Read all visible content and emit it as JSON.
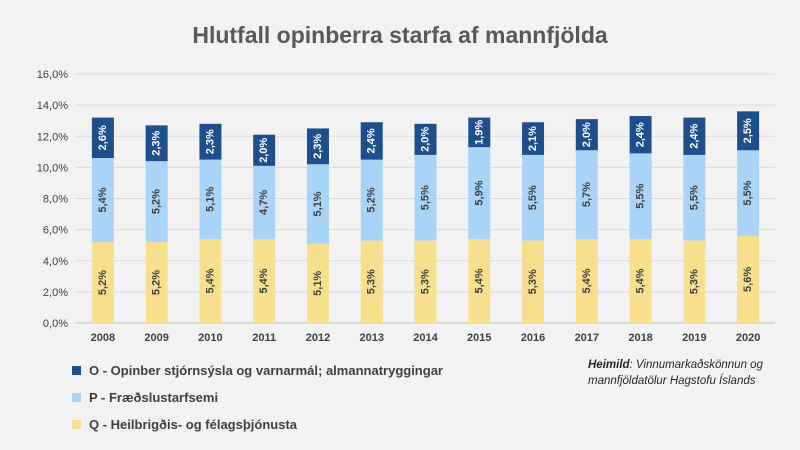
{
  "chart_data": {
    "type": "bar",
    "stacked": true,
    "title": "Hlutfall opinberra starfa af mannfjölda",
    "categories": [
      "2008",
      "2009",
      "2010",
      "2011",
      "2012",
      "2013",
      "2014",
      "2015",
      "2016",
      "2017",
      "2018",
      "2019",
      "2020"
    ],
    "series": [
      {
        "name": "Q - Heilbrigðis- og félagsþjónusta",
        "color": "#f7df8e",
        "label_color": "#404040",
        "values": [
          5.2,
          5.2,
          5.4,
          5.4,
          5.1,
          5.3,
          5.3,
          5.4,
          5.3,
          5.4,
          5.4,
          5.3,
          5.6
        ],
        "labels": [
          "5,2%",
          "5,2%",
          "5,4%",
          "5,4%",
          "5,1%",
          "5,3%",
          "5,3%",
          "5,4%",
          "5,3%",
          "5,4%",
          "5,4%",
          "5,3%",
          "5,6%"
        ]
      },
      {
        "name": "P - Fræðslustarfsemi",
        "color": "#a9d3f7",
        "label_color": "#404040",
        "values": [
          5.4,
          5.2,
          5.1,
          4.7,
          5.1,
          5.2,
          5.5,
          5.9,
          5.5,
          5.7,
          5.5,
          5.5,
          5.5
        ],
        "labels": [
          "5,4%",
          "5,2%",
          "5,1%",
          "4,7%",
          "5,1%",
          "5,2%",
          "5,5%",
          "5,9%",
          "5,5%",
          "5,7%",
          "5,5%",
          "5,5%",
          "5,5%"
        ]
      },
      {
        "name": "O - Opinber stjórnsýsla og varnarmál; almannatryggingar",
        "color": "#1f4e8c",
        "label_color": "#ffffff",
        "values": [
          2.6,
          2.3,
          2.3,
          2.0,
          2.3,
          2.4,
          2.0,
          1.9,
          2.1,
          2.0,
          2.4,
          2.4,
          2.5
        ],
        "labels": [
          "2,6%",
          "2,3%",
          "2,3%",
          "2,0%",
          "2,3%",
          "2,4%",
          "2,0%",
          "1,9%",
          "2,1%",
          "2,0%",
          "2,4%",
          "2,4%",
          "2,5%"
        ]
      }
    ],
    "ylim": [
      0,
      16
    ],
    "yticks": [
      0,
      2,
      4,
      6,
      8,
      10,
      12,
      14,
      16
    ],
    "ytick_labels": [
      "0,0%",
      "2,0%",
      "4,0%",
      "6,0%",
      "8,0%",
      "10,0%",
      "12,0%",
      "14,0%",
      "16,0%"
    ],
    "grid": true,
    "legend_position": "bottom-left"
  },
  "legend_items": [
    {
      "label": "O - Opinber stjórnsýsla og varnarmál; almannatryggingar",
      "color": "#1f4e8c"
    },
    {
      "label": "P - Fræðslustarfsemi",
      "color": "#a9d3f7"
    },
    {
      "label": "Q - Heilbrigðis- og félagsþjónusta",
      "color": "#f7df8e"
    }
  ],
  "source": {
    "label": "Heimild",
    "text": ": Vinnumarkaðskönnun og mannfjöldatölur Hagstofu Íslands"
  }
}
